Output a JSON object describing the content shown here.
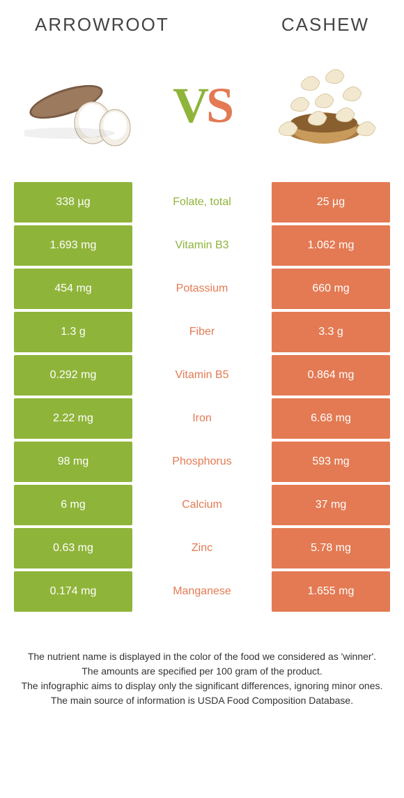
{
  "colors": {
    "left": "#8fb43a",
    "right": "#e37a53",
    "text": "#333333",
    "white": "#ffffff"
  },
  "header": {
    "left_title": "ARROWROOT",
    "right_title": "CASHEW"
  },
  "vs": {
    "v": "V",
    "s": "S"
  },
  "rows": [
    {
      "left": "338 µg",
      "label": "Folate, total",
      "right": "25 µg",
      "winner": "left"
    },
    {
      "left": "1.693 mg",
      "label": "Vitamin B3",
      "right": "1.062 mg",
      "winner": "left"
    },
    {
      "left": "454 mg",
      "label": "Potassium",
      "right": "660 mg",
      "winner": "right"
    },
    {
      "left": "1.3 g",
      "label": "Fiber",
      "right": "3.3 g",
      "winner": "right"
    },
    {
      "left": "0.292 mg",
      "label": "Vitamin B5",
      "right": "0.864 mg",
      "winner": "right"
    },
    {
      "left": "2.22 mg",
      "label": "Iron",
      "right": "6.68 mg",
      "winner": "right"
    },
    {
      "left": "98 mg",
      "label": "Phosphorus",
      "right": "593 mg",
      "winner": "right"
    },
    {
      "left": "6 mg",
      "label": "Calcium",
      "right": "37 mg",
      "winner": "right"
    },
    {
      "left": "0.63 mg",
      "label": "Zinc",
      "right": "5.78 mg",
      "winner": "right"
    },
    {
      "left": "0.174 mg",
      "label": "Manganese",
      "right": "1.655 mg",
      "winner": "right"
    }
  ],
  "footnotes": [
    "The nutrient name is displayed in the color of the food we considered as 'winner'.",
    "The amounts are specified per 100 gram of the product.",
    "The infographic aims to display only the significant differences, ignoring minor ones.",
    "The main source of information is USDA Food Composition Database."
  ]
}
